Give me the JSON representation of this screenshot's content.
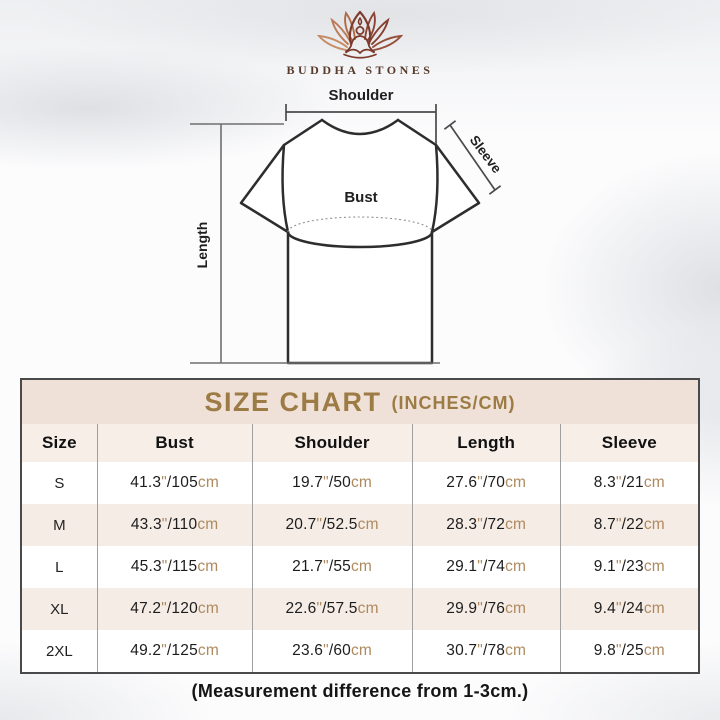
{
  "brand": {
    "name": "BUDDHA STONES",
    "logo_icon": "lotus-meditation-logo"
  },
  "diagram": {
    "shoulder_label": "Shoulder",
    "sleeve_label": "Sleeve",
    "bust_label": "Bust",
    "length_label": "Length"
  },
  "size_chart": {
    "title": "SIZE CHART",
    "subtitle": "(INCHES/CM)",
    "columns": [
      "Size",
      "Bust",
      "Shoulder",
      "Length",
      "Sleeve"
    ],
    "inch_mark": "\"",
    "separator": "/",
    "cm_suffix": "cm",
    "rows": [
      {
        "size": "S",
        "bust": {
          "in": "41.3",
          "cm": "105"
        },
        "shoulder": {
          "in": "19.7",
          "cm": "50"
        },
        "length": {
          "in": "27.6",
          "cm": "70"
        },
        "sleeve": {
          "in": "8.3",
          "cm": "21"
        }
      },
      {
        "size": "M",
        "bust": {
          "in": "43.3",
          "cm": "110"
        },
        "shoulder": {
          "in": "20.7",
          "cm": "52.5"
        },
        "length": {
          "in": "28.3",
          "cm": "72"
        },
        "sleeve": {
          "in": "8.7",
          "cm": "22"
        }
      },
      {
        "size": "L",
        "bust": {
          "in": "45.3",
          "cm": "115"
        },
        "shoulder": {
          "in": "21.7",
          "cm": "55"
        },
        "length": {
          "in": "29.1",
          "cm": "74"
        },
        "sleeve": {
          "in": "9.1",
          "cm": "23"
        }
      },
      {
        "size": "XL",
        "bust": {
          "in": "47.2",
          "cm": "120"
        },
        "shoulder": {
          "in": "22.6",
          "cm": "57.5"
        },
        "length": {
          "in": "29.9",
          "cm": "76"
        },
        "sleeve": {
          "in": "9.4",
          "cm": "24"
        }
      },
      {
        "size": "2XL",
        "bust": {
          "in": "49.2",
          "cm": "125"
        },
        "shoulder": {
          "in": "23.6",
          "cm": "60"
        },
        "length": {
          "in": "30.7",
          "cm": "78"
        },
        "sleeve": {
          "in": "9.8",
          "cm": "25"
        }
      }
    ]
  },
  "footer": {
    "note": "(Measurement difference from 1-3cm.)"
  },
  "theme": {
    "title_color": "#9c7b45",
    "unit_color": "#ae8a5e",
    "band_bg": "#efe1d7",
    "header_row_bg": "#f7eee8",
    "alt_row_bg": "#f6ece6",
    "table_border": "#4a4a4a",
    "brand_text": "#573a2c",
    "logo_dark": "#7c3a2c",
    "logo_light": "#c68c68"
  }
}
